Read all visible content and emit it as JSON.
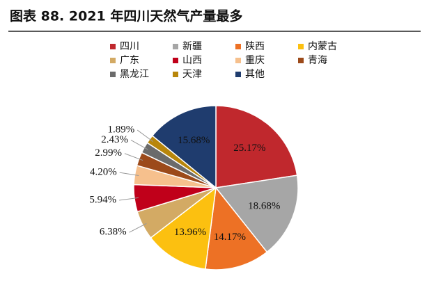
{
  "chart_data": {
    "type": "pie",
    "title": "图表 88. 2021 年四川天然气产量最多",
    "categories": [
      "四川",
      "新疆",
      "陕西",
      "内蒙古",
      "广东",
      "山西",
      "重庆",
      "青海",
      "黑龙江",
      "天津",
      "其他"
    ],
    "values": [
      25.17,
      18.68,
      14.17,
      13.96,
      6.38,
      5.94,
      4.2,
      2.99,
      2.43,
      1.89,
      15.68
    ],
    "value_labels": [
      "25.17%",
      "18.68%",
      "14.17%",
      "13.96%",
      "6.38%",
      "5.94%",
      "4.20%",
      "2.99%",
      "2.43%",
      "1.89%",
      "15.68%"
    ],
    "colors": [
      "#c0282d",
      "#a6a6a6",
      "#ed7125",
      "#fcc010",
      "#d3aa64",
      "#c0001a",
      "#f6c08d",
      "#9c4a1a",
      "#6b6b6b",
      "#b8860b",
      "#1f3c6e"
    ],
    "legend": "top"
  }
}
